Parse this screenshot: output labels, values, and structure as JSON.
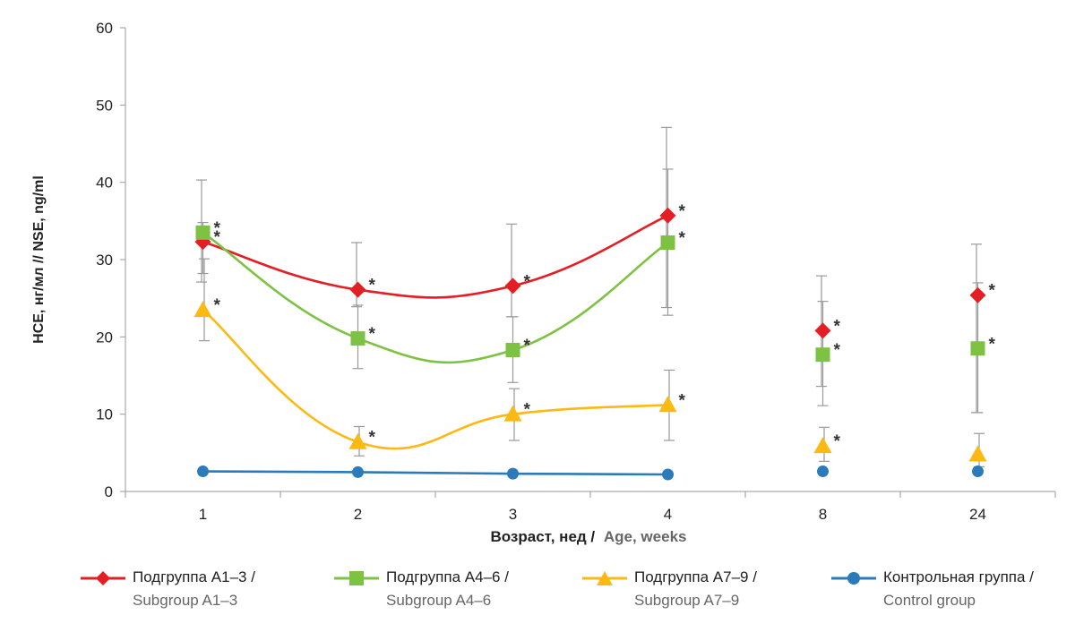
{
  "chart_data": {
    "type": "line",
    "ylabel": "НСЕ, нг/мл // NSE, ng/ml",
    "xlabel_ru": "Возраст, нед /",
    "xlabel_en": "Age, weeks",
    "categories": [
      "1",
      "2",
      "3",
      "4",
      "8",
      "24"
    ],
    "ylim": [
      0,
      60
    ],
    "yticks": [
      "0",
      "10",
      "20",
      "30",
      "40",
      "50",
      "60"
    ],
    "significance_marker": "*",
    "series": [
      {
        "name_ru": "Подгруппа А1–3 /",
        "name_en": "Subgroup A1–3",
        "color": "#e31e24",
        "marker": "diamond",
        "values": [
          32.3,
          26.1,
          26.6,
          35.7,
          20.8,
          25.4
        ],
        "error_low": [
          27.1,
          23.9,
          22.6,
          23.8,
          13.6,
          10.2
        ],
        "error_high": [
          40.3,
          32.2,
          34.6,
          47.1,
          27.9,
          32.0
        ],
        "significant": [
          true,
          true,
          true,
          true,
          true,
          true
        ],
        "connected_through": 4
      },
      {
        "name_ru": "Подгруппа А4–6 /",
        "name_en": "Subgroup A4–6",
        "color": "#7dc242",
        "marker": "square",
        "values": [
          33.5,
          19.8,
          18.3,
          32.2,
          17.7,
          18.5
        ],
        "error_low": [
          28.2,
          15.9,
          14.1,
          22.8,
          11.1,
          10.2
        ],
        "error_high": [
          34.8,
          24.1,
          22.6,
          41.7,
          24.6,
          27.0
        ],
        "significant": [
          true,
          true,
          true,
          true,
          true,
          true
        ],
        "connected_through": 4
      },
      {
        "name_ru": "Подгруппа А7–9 /",
        "name_en": "Subgroup A7–9",
        "color": "#fdb913",
        "marker": "triangle",
        "values": [
          23.5,
          6.4,
          10.0,
          11.2,
          5.9,
          4.8
        ],
        "error_low": [
          19.5,
          4.6,
          6.6,
          6.6,
          3.9,
          3.2
        ],
        "error_high": [
          30.1,
          8.4,
          13.3,
          15.7,
          8.3,
          7.5
        ],
        "significant": [
          true,
          true,
          true,
          true,
          true,
          false
        ],
        "connected_through": 4
      },
      {
        "name_ru": "Контрольная группа /",
        "name_en": "Control group",
        "color": "#2b7bba",
        "marker": "circle",
        "values": [
          2.6,
          2.5,
          2.3,
          2.2,
          2.6,
          2.6
        ],
        "error_low": null,
        "error_high": null,
        "significant": [
          false,
          false,
          false,
          false,
          false,
          false
        ],
        "connected_through": 4
      }
    ],
    "grid": false,
    "legend_position": "bottom"
  }
}
